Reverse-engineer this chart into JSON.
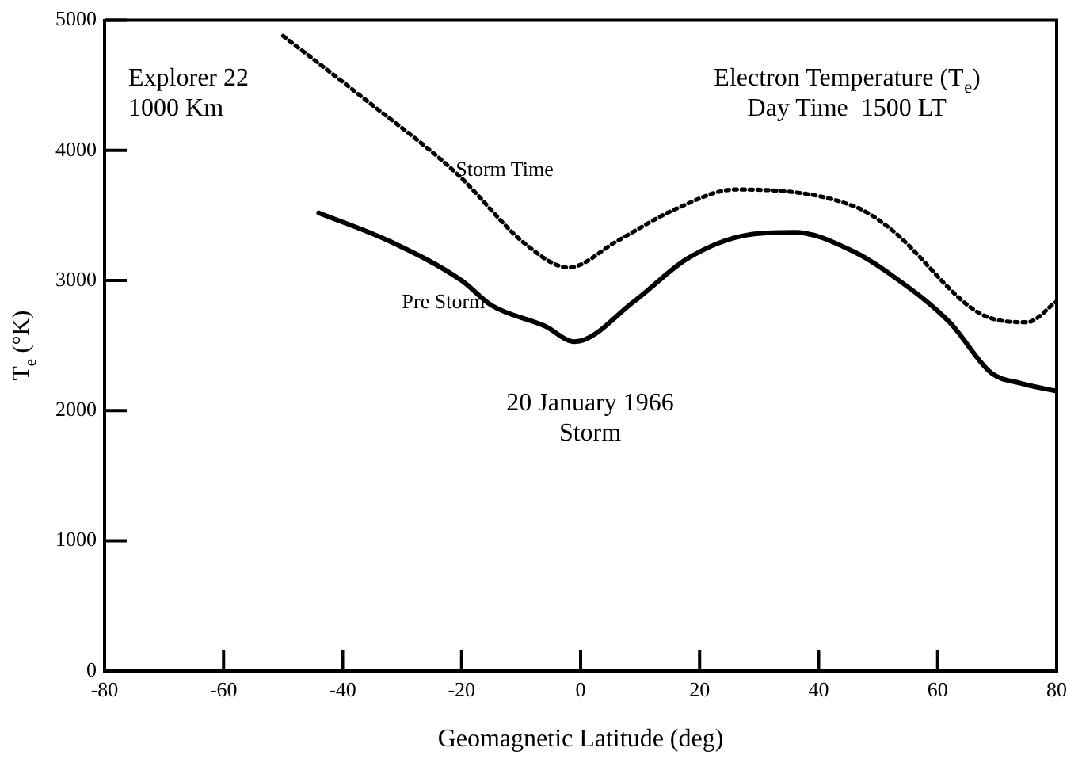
{
  "chart_data": {
    "type": "line",
    "xlabel": "Geomagnetic Latitude (deg)",
    "ylabel": "T$_{e}$ (°K)",
    "xlim": [
      -80,
      80
    ],
    "xticks": [
      -80,
      -60,
      -40,
      -20,
      0,
      20,
      40,
      60,
      80
    ],
    "ylim": [
      0,
      5000
    ],
    "yticks": [
      0,
      1000,
      2000,
      3000,
      4000,
      5000
    ],
    "grid": false,
    "legend": false,
    "marker": "none",
    "annotations": [
      "Explorer 22\n1000 Km",
      "Electron Temperature (T$_{e}$)\nDay Time  1500 LT",
      "20 January 1966\nStorm"
    ],
    "series": [
      {
        "name": "Storm Time",
        "color": "#000000",
        "line_style": "dotted",
        "x": [
          -50,
          -37,
          -21,
          -9,
          -2,
          6,
          16,
          26,
          46,
          52,
          67,
          75,
          80
        ],
        "values": [
          4880,
          4420,
          3830,
          3270,
          3100,
          3300,
          3550,
          3700,
          3570,
          3400,
          2750,
          2680,
          2840
        ]
      },
      {
        "name": "Pre Storm",
        "color": "#000000",
        "line_style": "solid",
        "x": [
          -44,
          -32,
          -20,
          -15,
          -6,
          -1,
          9,
          18,
          28,
          36,
          46,
          52,
          62,
          69,
          74,
          80
        ],
        "values": [
          3520,
          3300,
          3000,
          2810,
          2650,
          2530,
          2840,
          3170,
          3350,
          3370,
          3220,
          3050,
          2680,
          2290,
          2210,
          2150
        ]
      }
    ]
  }
}
